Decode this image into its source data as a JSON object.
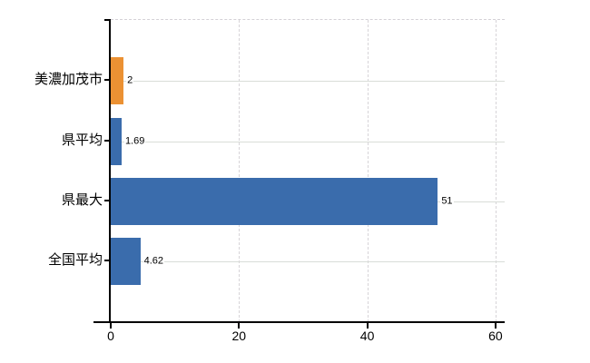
{
  "chart_data": {
    "type": "bar",
    "orientation": "horizontal",
    "categories": [
      "美濃加茂市",
      "県平均",
      "県最大",
      "全国平均"
    ],
    "values": [
      2,
      1.69,
      51,
      4.62
    ],
    "value_labels": [
      "2",
      "1.69",
      "51",
      "4.62"
    ],
    "bar_colors": [
      "#EB9133",
      "#3A6CAC",
      "#3A6CAC",
      "#3A6CAC"
    ],
    "x_tick_labels": [
      "0",
      "20",
      "40",
      "60"
    ],
    "x_tick_values": [
      0,
      20,
      40,
      60
    ],
    "xlim": [
      0,
      61.5
    ],
    "grid": true,
    "legend": false,
    "gridline_style": "light-gray, vertical dashed, horizontal solid"
  },
  "colors": {
    "highlight_bar": "#EB9133",
    "default_bar": "#3A6CAC",
    "gridline": "#D9D9D9",
    "axis": "#000000",
    "text": "#000000",
    "background": "#FFFFFF"
  }
}
